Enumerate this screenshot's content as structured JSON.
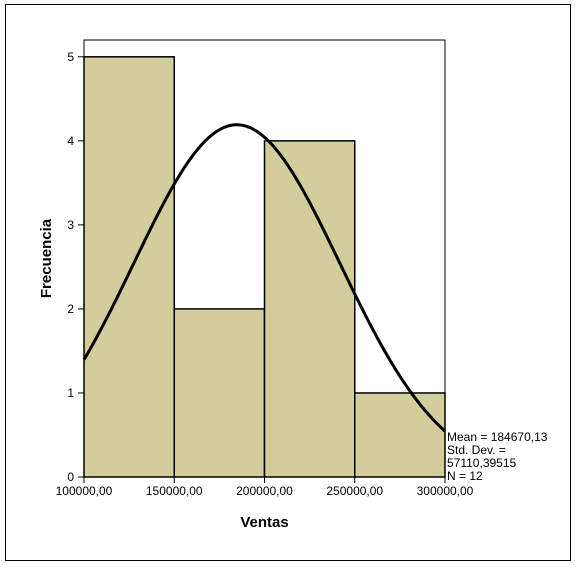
{
  "chart_data": {
    "type": "bar",
    "subtype": "histogram",
    "xlabel": "Ventas",
    "ylabel": "Frecuencia",
    "bins": [
      {
        "from": 100000,
        "to": 150000,
        "count": 5
      },
      {
        "from": 150000,
        "to": 200000,
        "count": 2
      },
      {
        "from": 200000,
        "to": 250000,
        "count": 4
      },
      {
        "from": 250000,
        "to": 300000,
        "count": 1
      }
    ],
    "xlim": [
      100000,
      300000
    ],
    "ylim": [
      0,
      5.2
    ],
    "x_ticks": [
      "100000,00",
      "150000,00",
      "200000,00",
      "250000,00",
      "300000,00"
    ],
    "y_ticks": [
      "0",
      "1",
      "2",
      "3",
      "4",
      "5"
    ],
    "normal_curve": {
      "mean": 184670.13,
      "std_dev": 57110.39515,
      "n": 12,
      "bin_width": 50000
    },
    "stats_text": [
      "Mean = 184670,13",
      "Std. Dev. =",
      "57110,39515",
      "N = 12"
    ],
    "grid": false,
    "colors": {
      "bar_fill": "#d3cd9b",
      "bar_stroke": "#000000",
      "curve": "#000000",
      "background": "#ffffff"
    }
  }
}
